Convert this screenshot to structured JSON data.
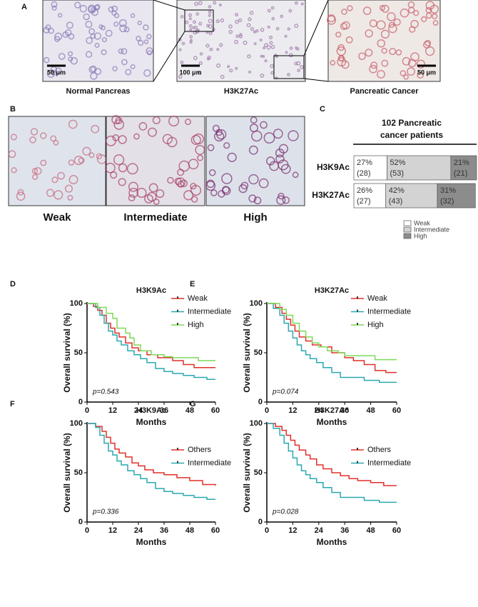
{
  "panel_a": {
    "label": "A",
    "images": [
      {
        "caption": "Normal Pancreas",
        "scale": "50 μm"
      },
      {
        "caption": "H3K27Ac",
        "scale": "100 μm"
      },
      {
        "caption": "Pancreatic Cancer",
        "scale": "50 μm"
      }
    ]
  },
  "panel_b": {
    "label": "B",
    "captions": [
      "Weak",
      "Intermediate",
      "High"
    ]
  },
  "panel_c": {
    "label": "C",
    "header": [
      "102 Pancreatic",
      "cancer patients"
    ],
    "categories": [
      "Weak",
      "Intermediate",
      "High"
    ],
    "colors": [
      "#ffffff",
      "#d3d3d3",
      "#8c8c8c"
    ],
    "rows": [
      {
        "label": "H3K9Ac",
        "values": [
          27,
          52,
          21
        ],
        "value_labels": [
          "27%",
          "52%",
          "21%"
        ],
        "counts": [
          28,
          53,
          21
        ],
        "count_labels": [
          "(28)",
          "(53)",
          "(21)"
        ]
      },
      {
        "label": "H3K27Ac",
        "values": [
          26,
          42,
          31
        ],
        "value_labels": [
          "26%",
          "42%",
          "31%"
        ],
        "counts": [
          27,
          43,
          32
        ],
        "count_labels": [
          "(27)",
          "(43)",
          "(32)"
        ]
      }
    ]
  },
  "chart_data": [
    {
      "type": "step",
      "panel": "D",
      "title": "H3K9Ac",
      "xlabel": "Months",
      "ylabel": "Overall survival (%)",
      "annotation": "p=0.543",
      "legend": "upper right",
      "xlim": [
        0,
        60
      ],
      "ylim": [
        0,
        100
      ],
      "xticks": [
        0,
        12,
        24,
        36,
        48,
        60
      ],
      "yticks": [
        0,
        50,
        100
      ],
      "series": [
        {
          "name": "Weak",
          "color": "#e0302a",
          "x": [
            0,
            3,
            5,
            7,
            9,
            11,
            13,
            15,
            18,
            21,
            24,
            28,
            33,
            40,
            45,
            50,
            60
          ],
          "values": [
            100,
            97,
            93,
            88,
            80,
            75,
            70,
            66,
            60,
            55,
            52,
            48,
            45,
            42,
            38,
            35,
            35
          ]
        },
        {
          "name": "Intermediate",
          "color": "#2aa9b0",
          "x": [
            0,
            4,
            6,
            8,
            10,
            12,
            14,
            16,
            19,
            22,
            25,
            28,
            32,
            36,
            40,
            45,
            50,
            56,
            60
          ],
          "values": [
            100,
            96,
            88,
            80,
            72,
            68,
            62,
            58,
            52,
            48,
            44,
            40,
            34,
            31,
            29,
            27,
            25,
            23,
            23
          ]
        },
        {
          "name": "High",
          "color": "#7ed957",
          "x": [
            0,
            5,
            9,
            12,
            14,
            18,
            20,
            22,
            25,
            30,
            36,
            40,
            52,
            60
          ],
          "values": [
            100,
            96,
            90,
            85,
            75,
            70,
            65,
            58,
            52,
            48,
            46,
            45,
            42,
            42
          ]
        }
      ]
    },
    {
      "type": "step",
      "panel": "E",
      "title": "H3K27Ac",
      "xlabel": "Months",
      "ylabel": "Overall survival (%)",
      "annotation": "p=0.074",
      "legend": "upper right",
      "xlim": [
        0,
        60
      ],
      "ylim": [
        0,
        100
      ],
      "xticks": [
        0,
        12,
        24,
        36,
        48,
        60
      ],
      "yticks": [
        0,
        50,
        100
      ],
      "series": [
        {
          "name": "Weak",
          "color": "#e0302a",
          "x": [
            0,
            4,
            7,
            9,
            11,
            13,
            15,
            18,
            21,
            25,
            30,
            36,
            40,
            45,
            50,
            55,
            60
          ],
          "values": [
            100,
            96,
            90,
            84,
            78,
            72,
            66,
            62,
            58,
            56,
            50,
            45,
            42,
            38,
            32,
            30,
            30
          ]
        },
        {
          "name": "Intermediate",
          "color": "#2aa9b0",
          "x": [
            0,
            3,
            6,
            8,
            10,
            12,
            14,
            16,
            18,
            20,
            23,
            26,
            30,
            34,
            40,
            45,
            52,
            60
          ],
          "values": [
            100,
            95,
            88,
            80,
            72,
            65,
            58,
            52,
            48,
            44,
            40,
            35,
            30,
            25,
            25,
            22,
            20,
            20
          ]
        },
        {
          "name": "High",
          "color": "#7ed957",
          "x": [
            0,
            6,
            9,
            12,
            15,
            18,
            21,
            24,
            28,
            33,
            36,
            48,
            50,
            60
          ],
          "values": [
            100,
            94,
            88,
            80,
            72,
            66,
            60,
            56,
            52,
            50,
            47,
            47,
            43,
            43
          ]
        }
      ]
    },
    {
      "type": "step",
      "panel": "F",
      "title": "H3K9Ac",
      "xlabel": "Months",
      "ylabel": "Overall survival (%)",
      "annotation": "p=0.336",
      "legend": "center right",
      "xlim": [
        0,
        60
      ],
      "ylim": [
        0,
        100
      ],
      "xticks": [
        0,
        12,
        24,
        36,
        48,
        60
      ],
      "yticks": [
        0,
        50,
        100
      ],
      "series": [
        {
          "name": "Others",
          "color": "#e0302a",
          "x": [
            0,
            4,
            7,
            9,
            11,
            13,
            15,
            18,
            21,
            24,
            27,
            31,
            36,
            42,
            48,
            54,
            60
          ],
          "values": [
            100,
            97,
            92,
            86,
            80,
            74,
            70,
            66,
            60,
            57,
            53,
            50,
            48,
            45,
            42,
            38,
            37
          ]
        },
        {
          "name": "Intermediate",
          "color": "#2aa9b0",
          "x": [
            0,
            4,
            6,
            8,
            10,
            12,
            14,
            16,
            19,
            22,
            25,
            28,
            32,
            36,
            40,
            45,
            50,
            56,
            60
          ],
          "values": [
            100,
            96,
            88,
            80,
            72,
            68,
            62,
            58,
            52,
            48,
            44,
            40,
            34,
            31,
            29,
            27,
            25,
            23,
            23
          ]
        }
      ]
    },
    {
      "type": "step",
      "panel": "G",
      "title": "H3K27Ac",
      "xlabel": "Months",
      "ylabel": "Overall survival (%)",
      "annotation": "p=0.028",
      "legend": "center right",
      "xlim": [
        0,
        60
      ],
      "ylim": [
        0,
        100
      ],
      "xticks": [
        0,
        12,
        24,
        36,
        48,
        60
      ],
      "yticks": [
        0,
        50,
        100
      ],
      "series": [
        {
          "name": "Others",
          "color": "#e0302a",
          "x": [
            0,
            4,
            7,
            9,
            11,
            13,
            15,
            18,
            20,
            23,
            26,
            30,
            34,
            38,
            42,
            48,
            54,
            60
          ],
          "values": [
            100,
            97,
            93,
            88,
            83,
            78,
            73,
            68,
            64,
            58,
            54,
            50,
            47,
            44,
            42,
            40,
            37,
            37
          ]
        },
        {
          "name": "Intermediate",
          "color": "#2aa9b0",
          "x": [
            0,
            3,
            6,
            8,
            10,
            12,
            14,
            16,
            18,
            20,
            23,
            26,
            30,
            34,
            40,
            45,
            52,
            60
          ],
          "values": [
            100,
            95,
            88,
            80,
            72,
            65,
            58,
            52,
            48,
            44,
            40,
            35,
            30,
            25,
            25,
            22,
            20,
            20
          ]
        }
      ]
    }
  ]
}
